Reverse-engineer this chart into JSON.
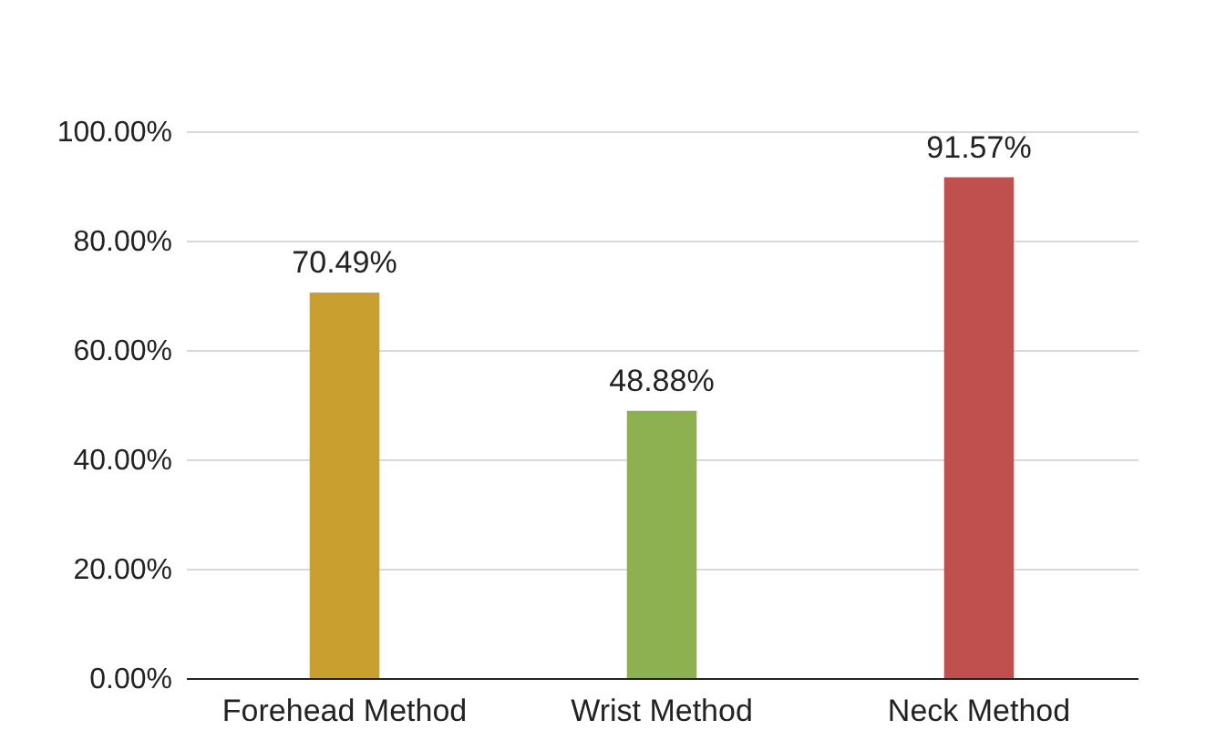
{
  "chart_data": {
    "type": "bar",
    "categories": [
      "Forehead Method",
      "Wrist Method",
      "Neck Method"
    ],
    "values": [
      70.49,
      48.88,
      91.57
    ],
    "colors": [
      "#c9a030",
      "#8db050",
      "#c0504d"
    ],
    "value_labels": [
      "70.49%",
      "48.88%",
      "91.57%"
    ],
    "ylim": [
      0,
      100
    ],
    "yticks": [
      {
        "value": 0,
        "label": "0.00%"
      },
      {
        "value": 20,
        "label": "20.00%"
      },
      {
        "value": 40,
        "label": "40.00%"
      },
      {
        "value": 60,
        "label": "60.00%"
      },
      {
        "value": 80,
        "label": "80.00%"
      },
      {
        "value": 100,
        "label": "100.00%"
      }
    ],
    "grid": "y"
  }
}
